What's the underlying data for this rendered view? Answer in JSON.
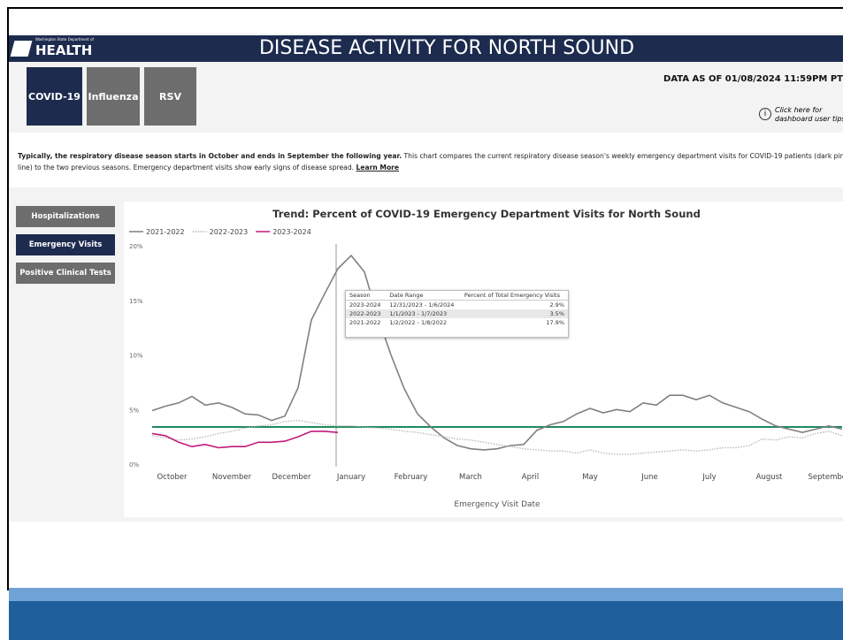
{
  "header": {
    "logo_small": "Washington State Department of",
    "logo": "HEALTH",
    "title": "DISEASE ACTIVITY FOR NORTH SOUND",
    "data_as_of": "DATA AS OF 01/08/2024 11:59PM PT",
    "tips": "Click here for dashboard user tips"
  },
  "tabs": [
    "COVID-19",
    "Influenza",
    "RSV"
  ],
  "description": {
    "bold": "Typically, the respiratory disease season starts in October and ends in September the following year.",
    "text": "This chart compares the current respiratory disease season's weekly emergency department visits for COVID-19 patients (dark pink line) to the two previous seasons. Emergency department visits show early signs of disease spread.",
    "link": "Learn More"
  },
  "side_buttons": [
    "Hospitalizations",
    "Emergency Visits",
    "Positive Clinical Tests"
  ],
  "tooltip": {
    "columns": [
      "Season",
      "Date Range",
      "Percent of Total Emergency Visits"
    ],
    "rows": [
      [
        "2023-2024",
        "12/31/2023 - 1/6/2024",
        "2.9%"
      ],
      [
        "2022-2023",
        "1/1/2023 - 1/7/2023",
        "3.5%"
      ],
      [
        "2021-2022",
        "1/2/2022 - 1/8/2022",
        "17.9%"
      ]
    ]
  },
  "chart_data": {
    "type": "line",
    "title": "Trend: Percent of COVID-19 Emergency Department Visits for North Sound",
    "x_label": "Emergency Visit Date",
    "x": [
      0,
      1,
      2,
      3,
      4,
      5,
      6,
      7,
      8,
      9,
      10,
      11,
      12,
      13,
      14,
      15,
      16,
      17,
      18,
      19,
      20,
      21,
      22,
      23,
      24,
      25,
      26,
      27,
      28,
      29,
      30,
      31,
      32,
      33,
      34,
      35,
      36,
      37,
      38,
      39,
      40,
      41,
      42,
      43,
      44,
      45,
      46,
      47,
      48,
      49,
      50,
      51,
      52
    ],
    "xlim": [
      0,
      52
    ],
    "xticks": [
      {
        "value": 1.5,
        "label": "October"
      },
      {
        "value": 6,
        "label": "November"
      },
      {
        "value": 10.5,
        "label": "December"
      },
      {
        "value": 15,
        "label": "January"
      },
      {
        "value": 19.5,
        "label": "February"
      },
      {
        "value": 24,
        "label": "March"
      },
      {
        "value": 28.5,
        "label": "April"
      },
      {
        "value": 33,
        "label": "May"
      },
      {
        "value": 37.5,
        "label": "June"
      },
      {
        "value": 42,
        "label": "July"
      },
      {
        "value": 46.5,
        "label": "August"
      },
      {
        "value": 51,
        "label": "September"
      }
    ],
    "ylim": [
      0,
      20
    ],
    "yticks": [
      {
        "value": 0,
        "label": "0%"
      },
      {
        "value": 5,
        "label": "5%"
      },
      {
        "value": 10,
        "label": "10%"
      },
      {
        "value": 15,
        "label": "15%"
      },
      {
        "value": 20,
        "label": "20%"
      }
    ],
    "reference_line": {
      "value": 3.4,
      "color": "#1f8a5c"
    },
    "series": [
      {
        "name": "2021-2022",
        "color": "#808080",
        "style": "solid",
        "values": [
          4.9,
          5.3,
          5.6,
          6.2,
          5.4,
          5.6,
          5.2,
          4.6,
          4.5,
          4.0,
          4.4,
          7.0,
          13.2,
          15.6,
          17.9,
          19.1,
          17.6,
          13.5,
          10.0,
          6.9,
          4.6,
          3.4,
          2.4,
          1.7,
          1.4,
          1.3,
          1.4,
          1.7,
          1.8,
          3.1,
          3.6,
          3.9,
          4.6,
          5.1,
          4.7,
          5.0,
          4.8,
          5.6,
          5.4,
          6.3,
          6.3,
          5.9,
          6.3,
          5.6,
          5.2,
          4.8,
          4.1,
          3.5,
          3.2,
          2.9,
          3.2,
          3.5,
          3.2
        ]
      },
      {
        "name": "2022-2023",
        "color": "#b5b5b5",
        "style": "dotted",
        "values": [
          2.6,
          2.4,
          2.2,
          2.3,
          2.5,
          2.8,
          3.0,
          3.3,
          3.5,
          3.6,
          3.9,
          4.0,
          3.8,
          3.6,
          3.5,
          3.5,
          3.4,
          3.3,
          3.2,
          3.0,
          2.9,
          2.7,
          2.5,
          2.3,
          2.2,
          2.0,
          1.8,
          1.6,
          1.4,
          1.3,
          1.2,
          1.2,
          1.0,
          1.3,
          1.0,
          0.9,
          0.9,
          1.0,
          1.1,
          1.2,
          1.3,
          1.2,
          1.3,
          1.5,
          1.5,
          1.7,
          2.3,
          2.2,
          2.5,
          2.4,
          2.8,
          3.0,
          2.6
        ]
      },
      {
        "name": "2023-2024",
        "color": "#c2187a",
        "style": "solid",
        "values": [
          2.8,
          2.6,
          2.0,
          1.6,
          1.8,
          1.5,
          1.6,
          1.6,
          2.0,
          2.0,
          2.1,
          2.5,
          3.0,
          3.0,
          2.9,
          null,
          null,
          null,
          null,
          null,
          null,
          null,
          null,
          null,
          null,
          null,
          null,
          null,
          null,
          null,
          null,
          null,
          null,
          null,
          null,
          null,
          null,
          null,
          null,
          null,
          null,
          null,
          null,
          null,
          null,
          null,
          null,
          null,
          null,
          null,
          null,
          null,
          null
        ]
      }
    ]
  }
}
